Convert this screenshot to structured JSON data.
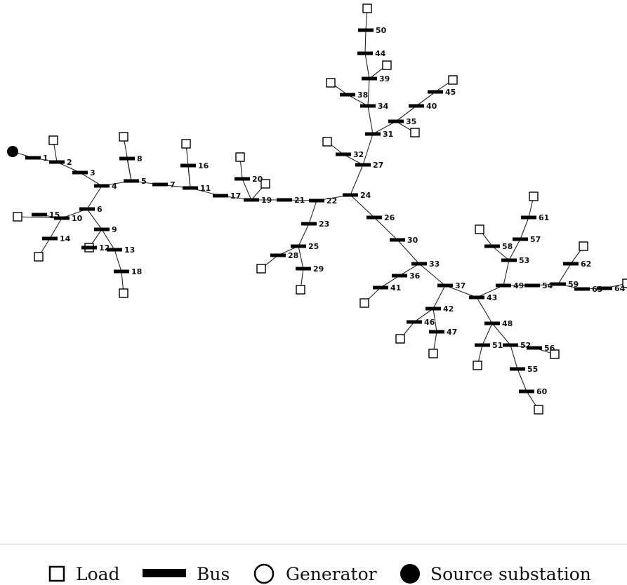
{
  "buses": [
    {
      "id": 1,
      "label": "1"
    },
    {
      "id": 2,
      "label": "2"
    },
    {
      "id": 3,
      "label": "3"
    },
    {
      "id": 4,
      "label": "4"
    },
    {
      "id": 5,
      "label": "5"
    },
    {
      "id": 6,
      "label": "6"
    },
    {
      "id": 7,
      "label": "7"
    },
    {
      "id": 8,
      "label": "8"
    },
    {
      "id": 9,
      "label": "9"
    },
    {
      "id": 10,
      "label": "10"
    },
    {
      "id": 11,
      "label": "11"
    },
    {
      "id": 12,
      "label": "12"
    },
    {
      "id": 13,
      "label": "13"
    },
    {
      "id": 14,
      "label": "14"
    },
    {
      "id": 15,
      "label": "15"
    },
    {
      "id": 16,
      "label": "16"
    },
    {
      "id": 17,
      "label": "17"
    },
    {
      "id": 18,
      "label": "18"
    },
    {
      "id": 19,
      "label": "19"
    },
    {
      "id": 20,
      "label": "20"
    },
    {
      "id": 21,
      "label": "21"
    },
    {
      "id": 22,
      "label": "22"
    },
    {
      "id": 23,
      "label": "23"
    },
    {
      "id": 24,
      "label": "24"
    },
    {
      "id": 25,
      "label": "25"
    },
    {
      "id": 26,
      "label": "26"
    },
    {
      "id": 27,
      "label": "27"
    },
    {
      "id": 28,
      "label": "28"
    },
    {
      "id": 29,
      "label": "29"
    },
    {
      "id": 30,
      "label": "30"
    },
    {
      "id": 31,
      "label": "31"
    },
    {
      "id": 32,
      "label": "32"
    },
    {
      "id": 33,
      "label": "33"
    },
    {
      "id": 34,
      "label": "34"
    },
    {
      "id": 35,
      "label": "35"
    },
    {
      "id": 36,
      "label": "36"
    },
    {
      "id": 37,
      "label": "37"
    },
    {
      "id": 38,
      "label": "38"
    },
    {
      "id": 39,
      "label": "39"
    },
    {
      "id": 40,
      "label": "40"
    },
    {
      "id": 41,
      "label": "41"
    },
    {
      "id": 42,
      "label": "42"
    },
    {
      "id": 43,
      "label": "43"
    },
    {
      "id": 44,
      "label": "44"
    },
    {
      "id": 45,
      "label": "45"
    },
    {
      "id": 46,
      "label": "46"
    },
    {
      "id": 47,
      "label": "47"
    },
    {
      "id": 48,
      "label": "48"
    },
    {
      "id": 49,
      "label": "49"
    },
    {
      "id": 50,
      "label": "50"
    },
    {
      "id": 51,
      "label": "51"
    },
    {
      "id": 52,
      "label": "52"
    },
    {
      "id": 53,
      "label": "53"
    },
    {
      "id": 54,
      "label": "54"
    },
    {
      "id": 55,
      "label": "55"
    },
    {
      "id": 56,
      "label": "56"
    },
    {
      "id": 57,
      "label": "57"
    },
    {
      "id": 58,
      "label": "58"
    },
    {
      "id": 59,
      "label": "59"
    },
    {
      "id": 60,
      "label": "60"
    },
    {
      "id": 61,
      "label": "61"
    },
    {
      "id": 62,
      "label": "62"
    },
    {
      "id": 63,
      "label": "63"
    },
    {
      "id": 64,
      "label": "64"
    }
  ],
  "lines": [
    [
      "S",
      1
    ],
    [
      1,
      2
    ],
    [
      2,
      3
    ],
    [
      3,
      4
    ],
    [
      4,
      5
    ],
    [
      4,
      6
    ],
    [
      5,
      7
    ],
    [
      5,
      8
    ],
    [
      7,
      11
    ],
    [
      6,
      9
    ],
    [
      6,
      10
    ],
    [
      10,
      15
    ],
    [
      10,
      14
    ],
    [
      9,
      12
    ],
    [
      9,
      13
    ],
    [
      13,
      18
    ],
    [
      11,
      16
    ],
    [
      11,
      17
    ],
    [
      17,
      19
    ],
    [
      19,
      20
    ],
    [
      19,
      21
    ],
    [
      21,
      22
    ],
    [
      22,
      23
    ],
    [
      22,
      24
    ],
    [
      23,
      25
    ],
    [
      25,
      28
    ],
    [
      25,
      29
    ],
    [
      24,
      27
    ],
    [
      24,
      26
    ],
    [
      27,
      32
    ],
    [
      27,
      31
    ],
    [
      31,
      34
    ],
    [
      31,
      35
    ],
    [
      34,
      38
    ],
    [
      34,
      39
    ],
    [
      39,
      44
    ],
    [
      44,
      50
    ],
    [
      35,
      40
    ],
    [
      40,
      45
    ],
    [
      26,
      30
    ],
    [
      30,
      33
    ],
    [
      33,
      36
    ],
    [
      33,
      37
    ],
    [
      36,
      41
    ],
    [
      37,
      42
    ],
    [
      37,
      43
    ],
    [
      42,
      46
    ],
    [
      42,
      47
    ],
    [
      43,
      48
    ],
    [
      43,
      49
    ],
    [
      48,
      51
    ],
    [
      48,
      52
    ],
    [
      52,
      55
    ],
    [
      52,
      56
    ],
    [
      55,
      60
    ],
    [
      49,
      53
    ],
    [
      49,
      54
    ],
    [
      53,
      57
    ],
    [
      53,
      58
    ],
    [
      57,
      61
    ],
    [
      54,
      59
    ],
    [
      59,
      62
    ],
    [
      59,
      63
    ],
    [
      63,
      64
    ]
  ],
  "loads": [
    2,
    5,
    10,
    14,
    12,
    18,
    11,
    19,
    20,
    28,
    29,
    32,
    38,
    39,
    50,
    35,
    45,
    41,
    46,
    47,
    51,
    56,
    60,
    58,
    61,
    62,
    64
  ],
  "source_substation": "S",
  "legend": [
    {
      "symbol": "load",
      "label": "Load"
    },
    {
      "symbol": "bus",
      "label": "Bus"
    },
    {
      "symbol": "generator",
      "label": "Generator"
    },
    {
      "symbol": "source",
      "label": "Source substation"
    }
  ]
}
